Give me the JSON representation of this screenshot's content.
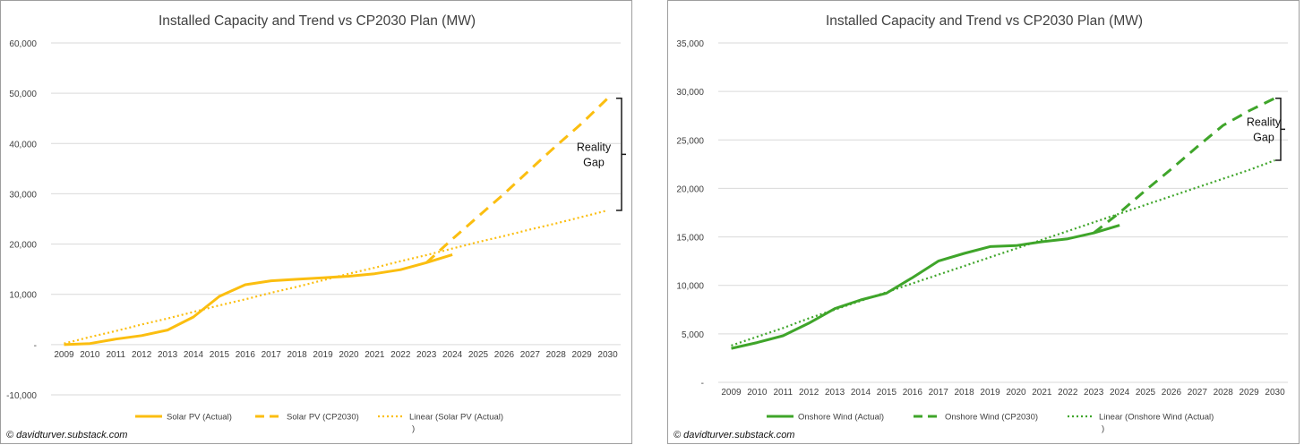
{
  "colors": {
    "solar": "#fbbe10",
    "wind": "#3fa52a",
    "grid": "#d9d9d9",
    "axis_text": "#404040",
    "title_text": "#404040",
    "bracket": "#1a1a1a"
  },
  "credit": "© davidturver.substack.com",
  "chart_data": [
    {
      "type": "line",
      "title": "Installed Capacity and Trend vs CP2030 Plan (MW)",
      "xlabel": "",
      "ylabel": "",
      "categories": [
        "2009",
        "2010",
        "2011",
        "2012",
        "2013",
        "2014",
        "2015",
        "2016",
        "2017",
        "2018",
        "2019",
        "2020",
        "2021",
        "2022",
        "2023",
        "2024",
        "2025",
        "2026",
        "2027",
        "2028",
        "2029",
        "2030"
      ],
      "ylim": [
        -10000,
        60000
      ],
      "y_ticks": [
        -10000,
        0,
        10000,
        20000,
        30000,
        40000,
        50000,
        60000
      ],
      "y_tick_labels": [
        "-10,000",
        "-",
        "10,000",
        "20,000",
        "30,000",
        "40,000",
        "50,000",
        "60,000"
      ],
      "series": [
        {
          "name": "Solar PV (Actual)",
          "style": "solid",
          "values": [
            0,
            200,
            1100,
            1800,
            2900,
            5500,
            9600,
            11900,
            12700,
            13000,
            13300,
            13600,
            14100,
            14900,
            16300,
            17900,
            null,
            null,
            null,
            null,
            null,
            null
          ]
        },
        {
          "name": "Solar PV (CP2030)",
          "style": "dashed",
          "values": [
            null,
            null,
            null,
            null,
            null,
            null,
            null,
            null,
            null,
            null,
            null,
            null,
            null,
            null,
            16300,
            21000,
            25500,
            30000,
            34800,
            39500,
            44000,
            49000
          ]
        },
        {
          "name": "Linear (Solar PV (Actual)\n)",
          "style": "dotted",
          "values": [
            200,
            1500,
            2700,
            4000,
            5200,
            6500,
            7800,
            9000,
            10300,
            11500,
            12800,
            14100,
            15300,
            16600,
            17800,
            19100,
            20400,
            21600,
            22900,
            24100,
            25400,
            26700
          ]
        }
      ],
      "legend": [
        "Solar PV (Actual)",
        "Solar PV (CP2030)",
        "Linear (Solar PV (Actual)",
        ")"
      ],
      "legend_position": "bottom",
      "annotation": {
        "text_lines": [
          "Reality",
          "Gap"
        ],
        "from_value": 26700,
        "to_value": 49000
      }
    },
    {
      "type": "line",
      "title": "Installed Capacity and Trend vs CP2030 Plan (MW)",
      "xlabel": "",
      "ylabel": "",
      "categories": [
        "2009",
        "2010",
        "2011",
        "2012",
        "2013",
        "2014",
        "2015",
        "2016",
        "2017",
        "2018",
        "2019",
        "2020",
        "2021",
        "2022",
        "2023",
        "2024",
        "2025",
        "2026",
        "2027",
        "2028",
        "2029",
        "2030"
      ],
      "ylim": [
        0,
        35000
      ],
      "y_ticks": [
        0,
        5000,
        10000,
        15000,
        20000,
        25000,
        30000,
        35000
      ],
      "y_tick_labels": [
        "-",
        "5,000",
        "10,000",
        "15,000",
        "20,000",
        "25,000",
        "30,000",
        "35,000"
      ],
      "series": [
        {
          "name": "Onshore Wind (Actual)",
          "style": "solid",
          "values": [
            3500,
            4100,
            4800,
            6100,
            7600,
            8500,
            9200,
            10800,
            12500,
            13300,
            14000,
            14100,
            14500,
            14800,
            15400,
            16200,
            null,
            null,
            null,
            null,
            null,
            null
          ]
        },
        {
          "name": "Onshore Wind (CP2030)",
          "style": "dashed",
          "values": [
            null,
            null,
            null,
            null,
            null,
            null,
            null,
            null,
            null,
            null,
            null,
            null,
            null,
            null,
            15400,
            17500,
            19800,
            22000,
            24300,
            26500,
            28000,
            29300
          ]
        },
        {
          "name": "Linear (Onshore Wind (Actual)\n)",
          "style": "dotted",
          "values": [
            3800,
            4700,
            5600,
            6600,
            7500,
            8400,
            9300,
            10200,
            11100,
            12000,
            12900,
            13800,
            14700,
            15600,
            16500,
            17400,
            18300,
            19200,
            20100,
            21000,
            21900,
            22900
          ]
        }
      ],
      "legend": [
        "Onshore Wind (Actual)",
        "Onshore Wind (CP2030)",
        "Linear (Onshore Wind (Actual)",
        ")"
      ],
      "legend_position": "bottom",
      "annotation": {
        "text_lines": [
          "Reality",
          "Gap"
        ],
        "from_value": 22900,
        "to_value": 29300
      }
    }
  ]
}
